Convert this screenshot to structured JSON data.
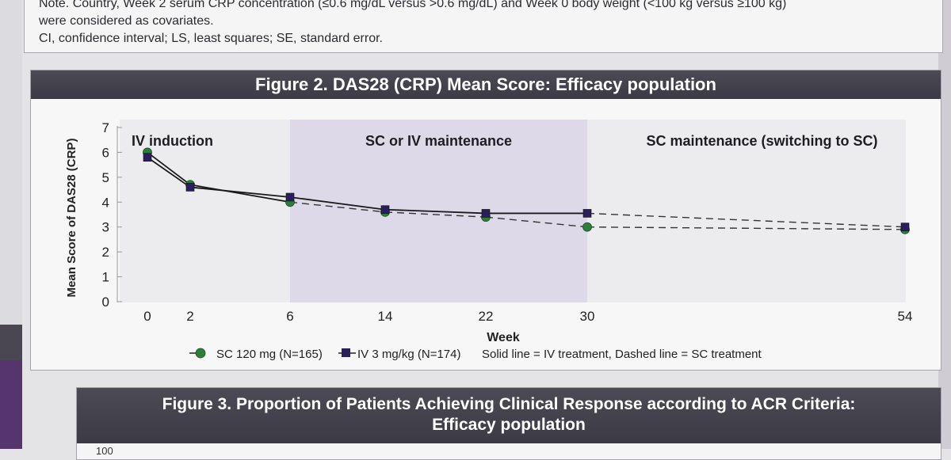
{
  "note": {
    "line1": "Note. Country, Week 2 serum CRP concentration (≤0.6 mg/dL versus >0.6 mg/dL) and Week 0 body weight (<100 kg versus ≥100 kg)",
    "line2": "were considered as covariates.",
    "line3": "CI, confidence interval; LS, least squares; SE, standard error."
  },
  "figure2": {
    "title": "Figure 2. DAS28 (CRP) Mean Score: Efficacy population"
  },
  "figure3": {
    "title_line1": "Figure 3. Proportion of Patients Achieving Clinical Response according to ACR Criteria:",
    "title_line2": "Efficacy population",
    "first_tick": "100"
  },
  "chart_data": {
    "type": "line",
    "title": "Figure 2. DAS28 (CRP) Mean Score: Efficacy population",
    "xlabel": "Week",
    "ylabel": "Mean Score of DAS28 (CRP)",
    "x": [
      0,
      2,
      6,
      14,
      22,
      30,
      54
    ],
    "x_tick_labels": [
      "0",
      "2",
      "6",
      "14",
      "22",
      "30",
      "54"
    ],
    "yticks": [
      0,
      1,
      2,
      3,
      4,
      5,
      6,
      7
    ],
    "ylim": [
      0,
      7
    ],
    "regions": [
      {
        "label": "IV induction",
        "x_range": [
          0,
          6
        ],
        "shaded": false
      },
      {
        "label": "SC or IV maintenance",
        "x_range": [
          6,
          30
        ],
        "shaded": true
      },
      {
        "label": "SC maintenance (switching to SC)",
        "x_range": [
          30,
          54
        ],
        "shaded": false
      }
    ],
    "series": [
      {
        "name": "SC 120 mg (N=165)",
        "marker": "circle",
        "color": "#2e7d3a",
        "values": [
          6.0,
          4.7,
          4.0,
          3.6,
          3.4,
          3.0,
          2.9
        ],
        "line_style": [
          "solid",
          "solid",
          "dashed",
          "dashed",
          "dashed",
          "dashed"
        ]
      },
      {
        "name": "IV 3 mg/kg (N=174)",
        "marker": "square",
        "color": "#2a1f5c",
        "values": [
          5.8,
          4.6,
          4.2,
          3.7,
          3.55,
          3.55,
          3.0
        ],
        "line_style": [
          "solid",
          "solid",
          "solid",
          "solid",
          "solid",
          "dashed"
        ]
      }
    ],
    "legend_note": "Solid line = IV treatment, Dashed line = SC treatment",
    "legend_position": "bottom"
  },
  "colors": {
    "header_bg": "#45434d",
    "shade_region": "#ddd9e8",
    "sc_green": "#2e7d3a",
    "iv_navy": "#2a1f5c"
  }
}
